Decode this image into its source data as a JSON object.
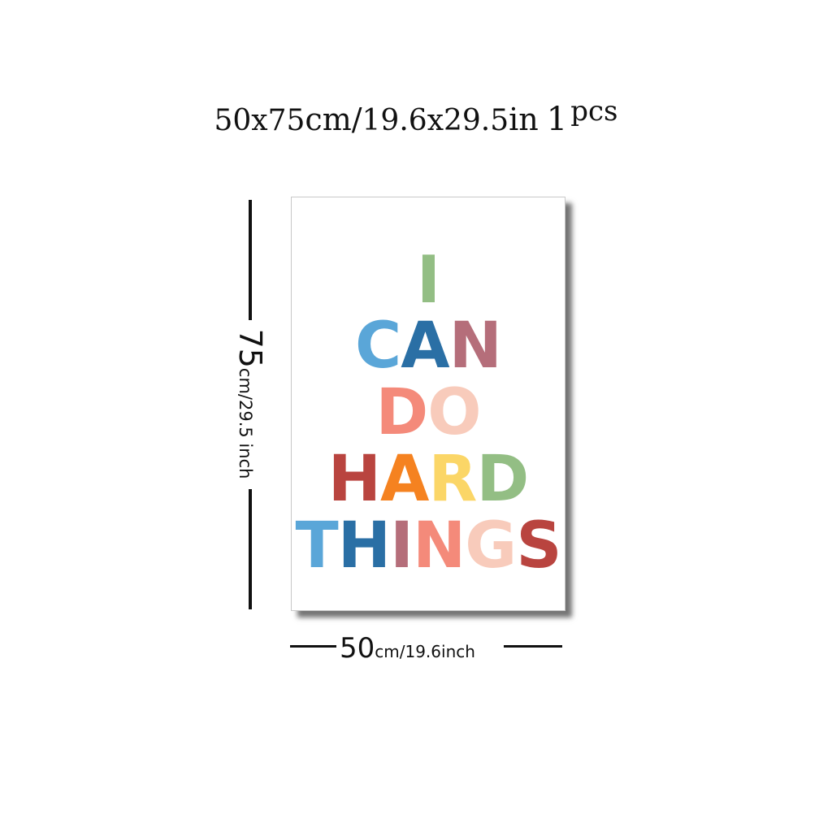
{
  "title": {
    "w": "50",
    "x1": " x ",
    "h": "75",
    "cm": " cm/ ",
    "w_in": "19.6",
    "x2": "  x  ",
    "h_in": "29.5",
    "in": "  in ",
    "pcs_num": "1",
    "pcs": "pcs"
  },
  "poster": {
    "lines": [
      [
        {
          "ch": "I",
          "color": "#93be84"
        }
      ],
      [
        {
          "ch": "C",
          "color": "#5aa6d8"
        },
        {
          "ch": "A",
          "color": "#2a6fa5"
        },
        {
          "ch": "N",
          "color": "#b56e7a"
        }
      ],
      [
        {
          "ch": "D",
          "color": "#f48a7a"
        },
        {
          "ch": "O",
          "color": "#f8cbbb"
        }
      ],
      [
        {
          "ch": "H",
          "color": "#b9443f"
        },
        {
          "ch": "A",
          "color": "#f58220"
        },
        {
          "ch": "R",
          "color": "#fbd667"
        },
        {
          "ch": "D",
          "color": "#93be84"
        }
      ],
      [
        {
          "ch": "T",
          "color": "#5aa6d8"
        },
        {
          "ch": "H",
          "color": "#2a6fa5"
        },
        {
          "ch": "I",
          "color": "#b56e7a"
        },
        {
          "ch": "N",
          "color": "#f48a7a"
        },
        {
          "ch": "G",
          "color": "#f8cbbb"
        },
        {
          "ch": "S",
          "color": "#b9443f"
        }
      ]
    ]
  },
  "height_dim": {
    "big": "75",
    "small": "cm/29.5 inch"
  },
  "width_dim": {
    "big": "50",
    "small": "cm/19.6inch"
  }
}
